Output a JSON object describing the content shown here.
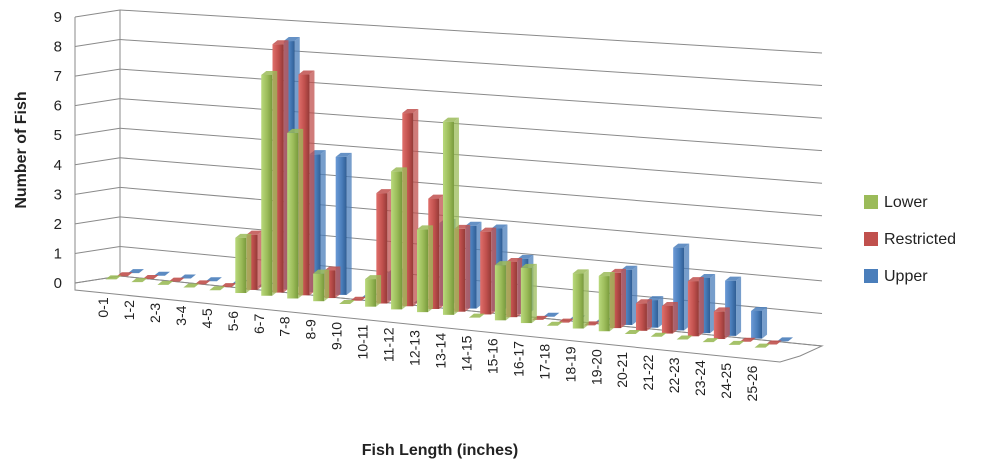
{
  "chart_data": {
    "type": "bar",
    "title": "",
    "xlabel": "Fish Length (inches)",
    "ylabel": "Number of Fish",
    "ylim": [
      0,
      9
    ],
    "yticks": [
      0,
      1,
      2,
      3,
      4,
      5,
      6,
      7,
      8,
      9
    ],
    "grid": true,
    "legend_position": "right",
    "categories": [
      "0-1",
      "1-2",
      "2-3",
      "3-4",
      "4-5",
      "5-6",
      "6-7",
      "7-8",
      "8-9",
      "9-10",
      "10-11",
      "11-12",
      "12-13",
      "13-14",
      "14-15",
      "15-16",
      "16-17",
      "17-18",
      "18-19",
      "19-20",
      "20-21",
      "21-22",
      "22-23",
      "23-24",
      "24-25",
      "25-26"
    ],
    "series": [
      {
        "name": "Upper",
        "color": "#4a7ebb",
        "values": [
          0,
          0,
          0,
          0,
          0,
          0,
          9,
          5,
          5,
          0,
          1,
          0,
          3,
          3,
          3,
          2,
          0,
          0,
          0,
          2,
          1,
          3,
          2,
          2,
          1,
          0
        ]
      },
      {
        "name": "Restricted",
        "color": "#c0504d",
        "values": [
          0,
          0,
          0,
          0,
          0,
          2,
          9,
          8,
          1,
          0,
          4,
          7,
          4,
          3,
          3,
          2,
          0,
          0,
          0,
          2,
          1,
          1,
          2,
          1,
          0,
          0
        ]
      },
      {
        "name": "Lower",
        "color": "#9bbb59",
        "values": [
          0,
          0,
          0,
          0,
          0,
          2,
          8,
          6,
          1,
          0,
          1,
          5,
          3,
          7,
          0,
          2,
          2,
          0,
          2,
          2,
          0,
          0,
          0,
          0,
          0,
          0
        ]
      }
    ]
  }
}
